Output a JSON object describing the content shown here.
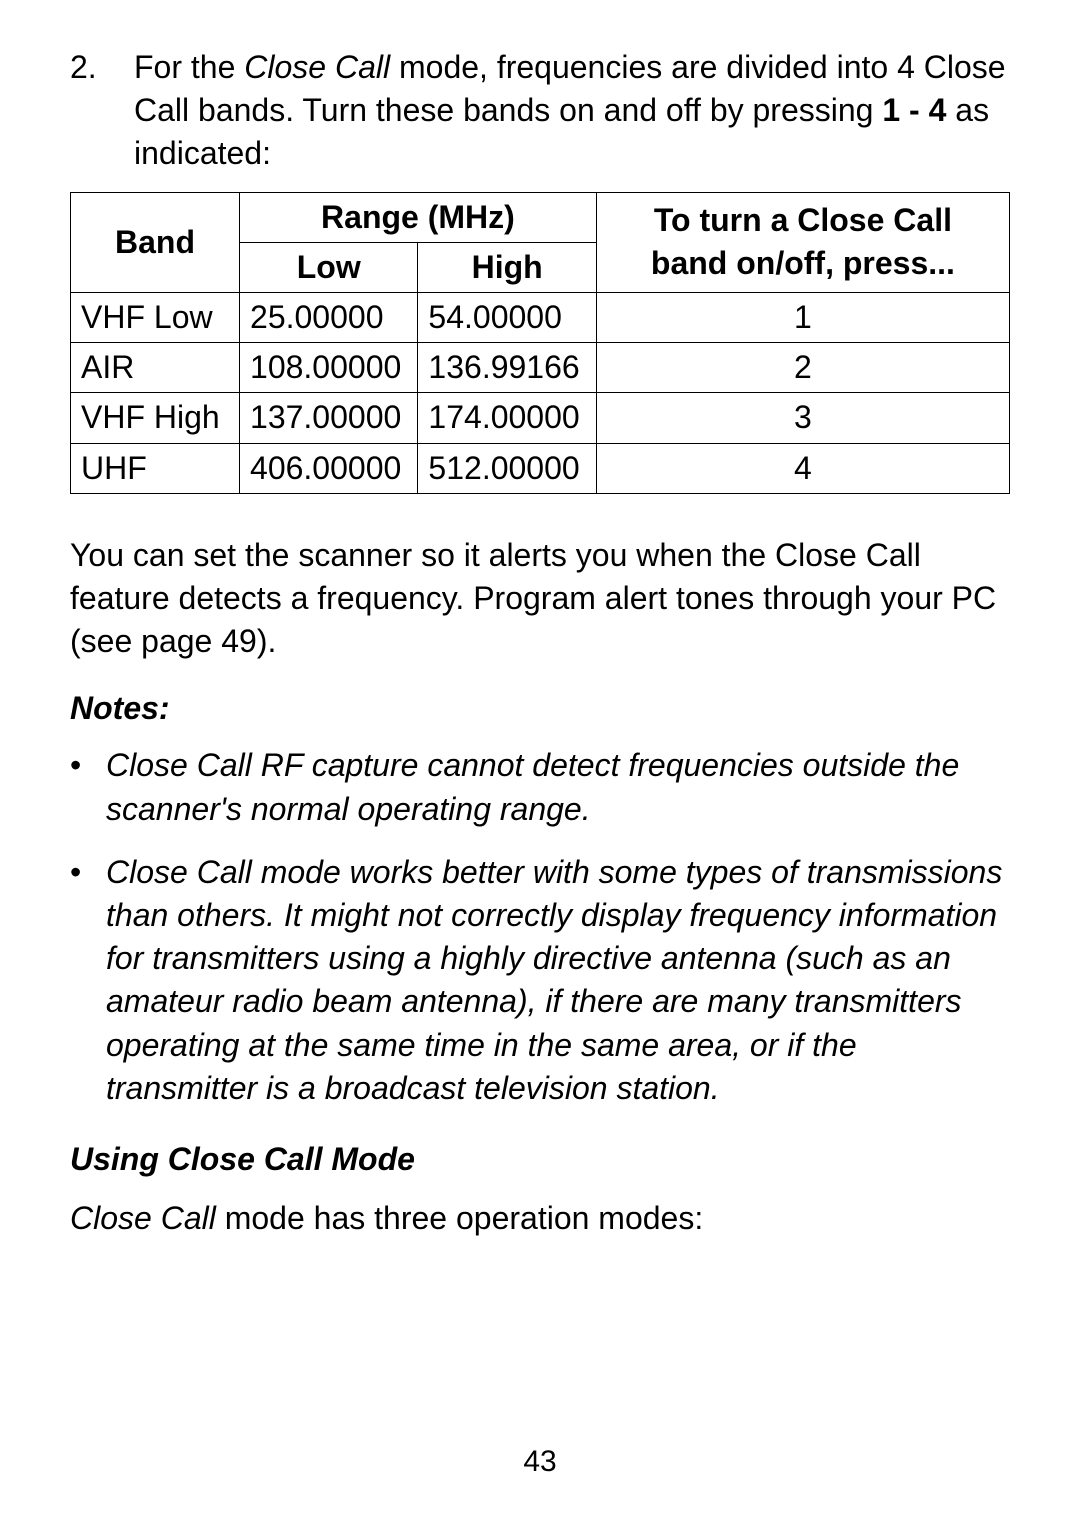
{
  "step": {
    "number": "2.",
    "text_pre": "For the ",
    "text_em1": "Close Call",
    "text_mid": " mode, frequencies are divided into 4 Close Call bands. Turn these bands on and off by pressing ",
    "text_bold": "1 - 4",
    "text_post": " as indicated:"
  },
  "table": {
    "headers": {
      "band": "Band",
      "range": "Range (MHz)",
      "low": "Low",
      "high": "High",
      "press_line1": "To turn a Close Call",
      "press_line2": "band on/off, press..."
    },
    "rows": [
      {
        "band": "VHF Low",
        "low": "25.00000",
        "high": "54.00000",
        "press": "1"
      },
      {
        "band": "AIR",
        "low": "108.00000",
        "high": "136.99166",
        "press": "2"
      },
      {
        "band": "VHF High",
        "low": "137.00000",
        "high": "174.00000",
        "press": "3"
      },
      {
        "band": "UHF",
        "low": "406.00000",
        "high": "512.00000",
        "press": "4"
      }
    ]
  },
  "paragraph_after_table": "You can set the scanner so it alerts you when the Close Call feature detects a frequency. Program alert tones through your PC (see page 49).",
  "notes": {
    "heading": "Notes:",
    "items": [
      "Close Call RF capture cannot detect frequencies outside the scanner's normal operating range.",
      "Close Call mode works better with some types of transmissions than others. It might not correctly display frequency information for transmitters using a highly directive antenna (such as an amateur radio beam antenna), if there are many transmitters operating at the same time in the same area, or if the transmitter is a broadcast television station."
    ]
  },
  "subheading": "Using Close Call Mode",
  "closing": {
    "em": "Close Call",
    "rest": " mode has three operation modes:"
  },
  "page_number": "43"
}
